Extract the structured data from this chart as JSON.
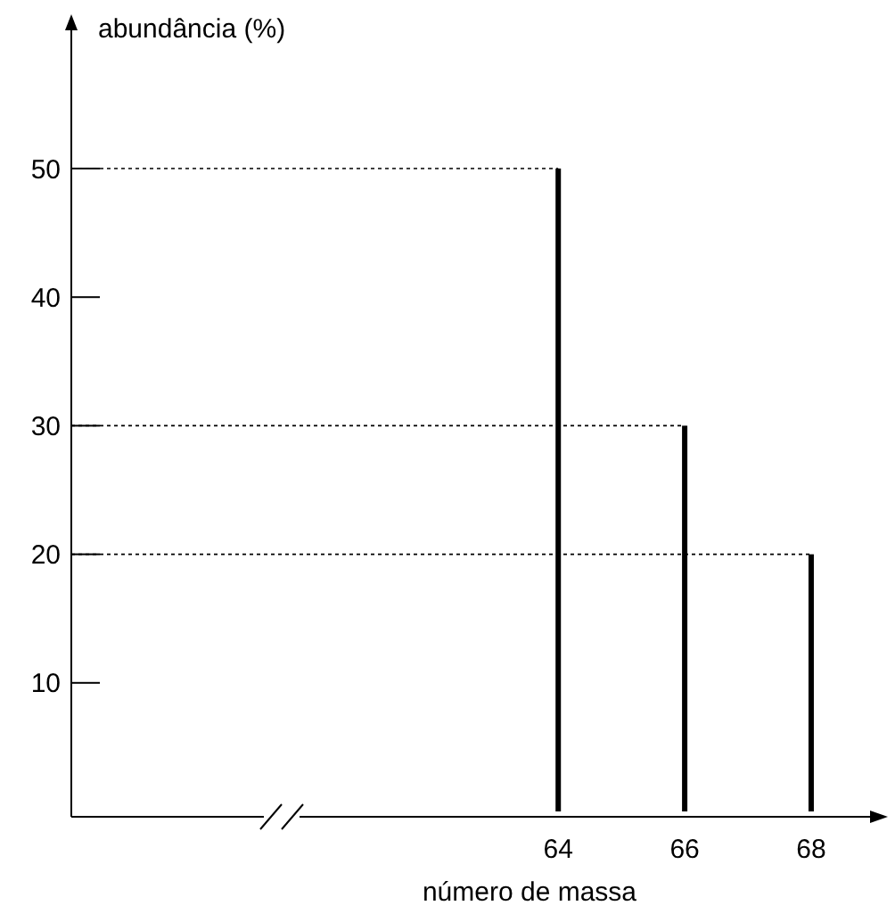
{
  "chart_data": {
    "type": "bar",
    "xlabel": "número de massa",
    "ylabel": "abundância (%)",
    "x": [
      64,
      66,
      68
    ],
    "series": [
      {
        "color": "#000000",
        "values": [
          50,
          30,
          20
        ]
      }
    ],
    "xlim": [
      56.3,
      69.1
    ],
    "xticks": [
      64,
      66,
      68
    ],
    "ylim": [
      0,
      62
    ],
    "yticks": [
      10,
      20,
      30,
      40,
      50
    ],
    "ref_lines": [
      {
        "axis": "y",
        "value": 50,
        "line_style": "dotted",
        "color": "#000000"
      },
      {
        "axis": "y",
        "value": 30,
        "line_style": "dotted",
        "color": "#000000"
      },
      {
        "axis": "y",
        "value": 20,
        "line_style": "dotted",
        "color": "#000000"
      }
    ],
    "grid": false
  }
}
